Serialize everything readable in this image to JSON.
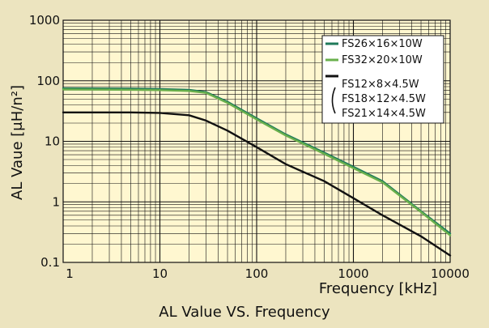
{
  "chart_data": {
    "type": "line",
    "title": "AL Value VS. Frequency",
    "xlabel": "Frequency [kHz]",
    "ylabel": "AL Vaue [μH/n²]",
    "xscale": "log",
    "yscale": "log",
    "xlim": [
      1,
      10000
    ],
    "ylim": [
      0.1,
      1000
    ],
    "x_ticks": [
      "1",
      "10",
      "100",
      "1000",
      "10000"
    ],
    "y_ticks": [
      "0.1",
      "1",
      "10",
      "100",
      "1000"
    ],
    "grid": true,
    "legend_position": "top-right",
    "series": [
      {
        "name": "FS26×16×10W",
        "color": "#1f7a5a",
        "x": [
          1,
          5,
          10,
          20,
          30,
          50,
          100,
          200,
          500,
          1000,
          2000,
          5000,
          10000
        ],
        "y": [
          75,
          74,
          73,
          71,
          65,
          45,
          24,
          13,
          6.5,
          3.8,
          2.2,
          0.7,
          0.3
        ]
      },
      {
        "name": "FS32×20×10W",
        "color": "#6ab04c",
        "x": [
          1,
          5,
          10,
          20,
          30,
          50,
          100,
          200,
          500,
          1000,
          2000,
          5000,
          10000
        ],
        "y": [
          72,
          71,
          70,
          68,
          63,
          43,
          23,
          12.5,
          6.2,
          3.6,
          2.1,
          0.68,
          0.28
        ]
      },
      {
        "name": "FS12×8×4.5W / FS18×12×4.5W / FS21×14×4.5W",
        "color": "#111111",
        "x": [
          1,
          5,
          10,
          20,
          30,
          50,
          100,
          200,
          500,
          1000,
          2000,
          5000,
          10000
        ],
        "y": [
          30,
          30,
          29.5,
          27,
          22,
          15,
          8,
          4.2,
          2.2,
          1.15,
          0.6,
          0.27,
          0.13
        ]
      }
    ],
    "legend_entries": [
      "FS26×16×10W",
      "FS32×20×10W",
      "FS12×8×4.5W",
      "FS18×12×4.5W",
      "FS21×14×4.5W"
    ]
  }
}
